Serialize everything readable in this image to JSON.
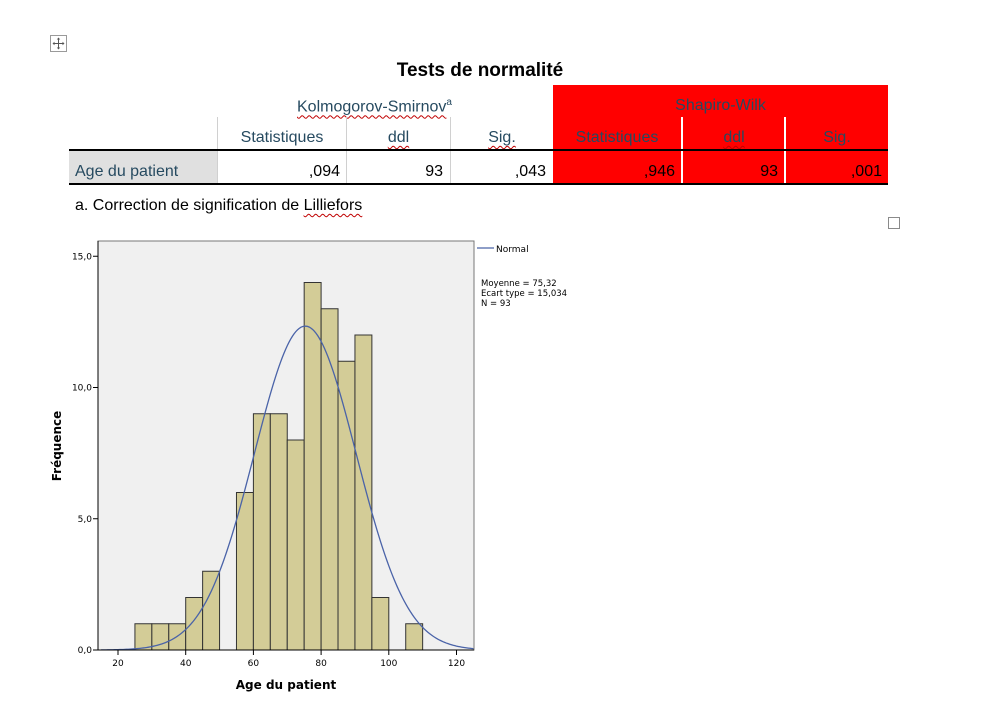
{
  "table": {
    "title": "Tests de normalité",
    "group_ks": "Kolmogorov-Smirnov",
    "group_ks_sup": "a",
    "group_sw": "Shapiro-Wilk",
    "columns": [
      "Statistiques",
      "ddl",
      "Sig.",
      "Statistiques",
      "ddl",
      "Sig."
    ],
    "row_label": "Age du patient",
    "values": [
      ",094",
      "93",
      ",043",
      ",946",
      "93",
      ",001"
    ],
    "highlight_color": "#ff0000",
    "header_text_color": "#264a60"
  },
  "footnote": {
    "prefix": "a. Correction de signification de ",
    "word": "Lilliefors"
  },
  "chart_data": {
    "type": "bar",
    "subtype": "histogram",
    "xlabel": "Age du patient",
    "ylabel": "Fréquence",
    "xlim": [
      15,
      125
    ],
    "ylim": [
      0,
      16
    ],
    "xticks": [
      20,
      40,
      60,
      80,
      100,
      120
    ],
    "xtick_labels": [
      "20",
      "40",
      "60",
      "80",
      "100",
      "120"
    ],
    "yticks": [
      0,
      5,
      10,
      15
    ],
    "ytick_labels": [
      "0,0",
      "5,0",
      "10,0",
      "15,0"
    ],
    "bin_width": 5,
    "bins": [
      {
        "start": 25,
        "end": 30,
        "count": 1
      },
      {
        "start": 30,
        "end": 35,
        "count": 1
      },
      {
        "start": 35,
        "end": 40,
        "count": 1
      },
      {
        "start": 40,
        "end": 45,
        "count": 2
      },
      {
        "start": 45,
        "end": 50,
        "count": 3
      },
      {
        "start": 55,
        "end": 60,
        "count": 6
      },
      {
        "start": 60,
        "end": 65,
        "count": 9
      },
      {
        "start": 65,
        "end": 70,
        "count": 9
      },
      {
        "start": 70,
        "end": 75,
        "count": 8
      },
      {
        "start": 75,
        "end": 80,
        "count": 14
      },
      {
        "start": 80,
        "end": 85,
        "count": 13
      },
      {
        "start": 85,
        "end": 90,
        "count": 11
      },
      {
        "start": 90,
        "end": 95,
        "count": 12
      },
      {
        "start": 95,
        "end": 100,
        "count": 2
      },
      {
        "start": 105,
        "end": 110,
        "count": 1
      }
    ],
    "normal_curve": {
      "legend": "Normal",
      "mean": 75.32,
      "sd": 15.034,
      "n": 93
    },
    "stats_text": [
      "Moyenne = 75,32",
      "Ecart type = 15,034",
      "N = 93"
    ],
    "colors": {
      "bar_fill": "#d3cc97",
      "bar_stroke": "#333333",
      "curve": "#4a63a8",
      "plot_bg": "#f0f0f0"
    }
  }
}
